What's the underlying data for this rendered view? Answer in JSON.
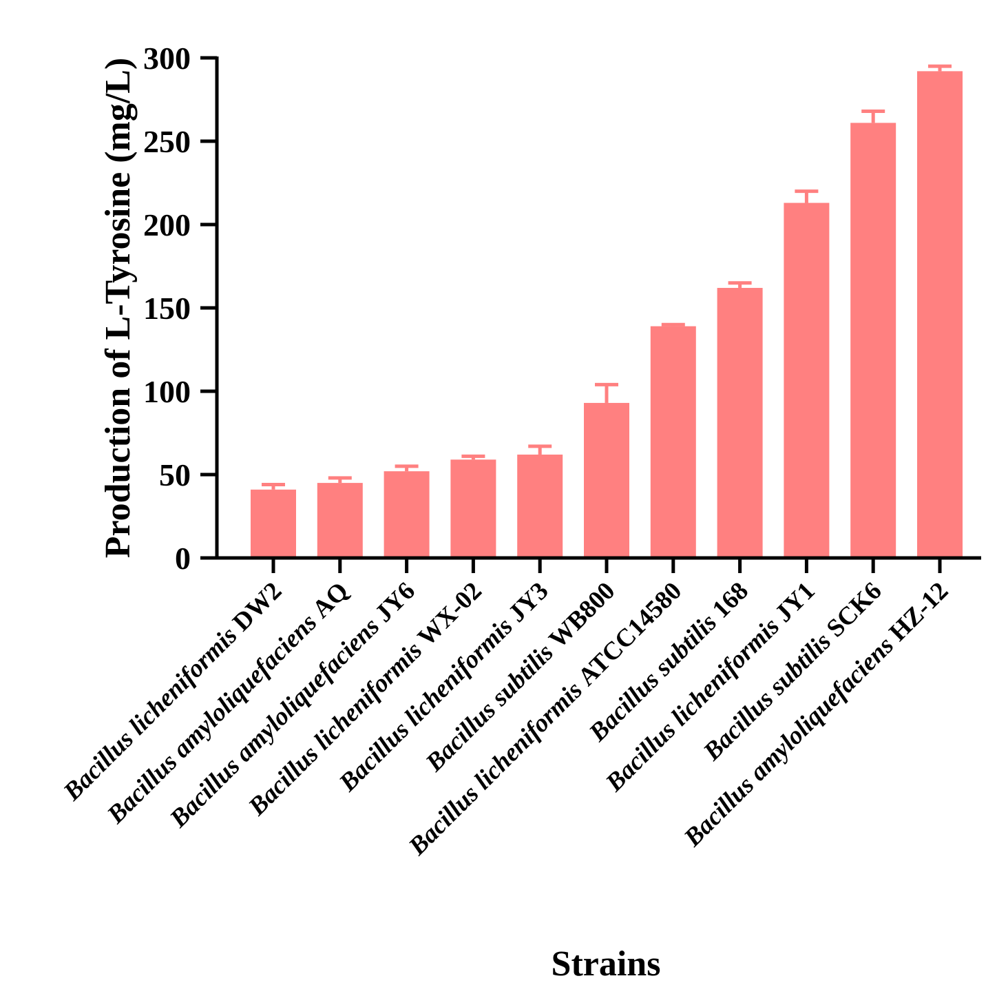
{
  "chart_data": {
    "type": "bar",
    "title": "",
    "xlabel": "Strains",
    "ylabel": "Production of L-Tyrosine (mg/L)",
    "ylim": [
      0,
      300
    ],
    "yticks": [
      0,
      50,
      100,
      150,
      200,
      250,
      300
    ],
    "ytick_labels": [
      "0",
      "50",
      "100",
      "150",
      "200",
      "250",
      "300"
    ],
    "bar_color": "#ff8080",
    "axis_color": "#000000",
    "categories": [
      {
        "genus": "Bacillus",
        "species": "licheniformis",
        "strain": "DW2"
      },
      {
        "genus": "Bacillus",
        "species": "amyloliquefaciens",
        "strain": "AQ"
      },
      {
        "genus": "Bacillus",
        "species": "amyloliquefaciens",
        "strain": "JY6"
      },
      {
        "genus": "Bacillus",
        "species": "licheniformis",
        "strain": "WX-02"
      },
      {
        "genus": "Bacillus",
        "species": "licheniformis",
        "strain": "JY3"
      },
      {
        "genus": "Bacillus",
        "species": "subtilis",
        "strain": "WB800"
      },
      {
        "genus": "Bacillus",
        "species": "licheniformis",
        "strain": "ATCC14580"
      },
      {
        "genus": "Bacillus",
        "species": "subtilis",
        "strain": "168"
      },
      {
        "genus": "Bacillus",
        "species": "licheniformis",
        "strain": "JY1"
      },
      {
        "genus": "Bacillus",
        "species": "subtilis",
        "strain": "SCK6"
      },
      {
        "genus": "Bacillus",
        "species": "amyloliquefaciens",
        "strain": "HZ-12"
      }
    ],
    "values": [
      41,
      45,
      52,
      59,
      62,
      93,
      139,
      162,
      213,
      261,
      292
    ],
    "errors": [
      3,
      3,
      3,
      2,
      5,
      11,
      1,
      3,
      7,
      7,
      3
    ]
  }
}
